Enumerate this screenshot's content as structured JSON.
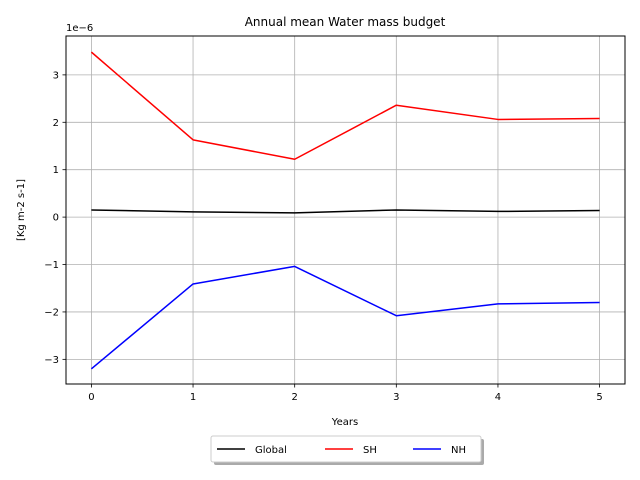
{
  "chart_data": {
    "type": "line",
    "title": "Annual mean Water mass budget",
    "xlabel": "Years",
    "ylabel": "[Kg m-2 s-1]",
    "offset_text": "1e−6",
    "y_scale_factor": 1e-06,
    "x": [
      0,
      1,
      2,
      3,
      4,
      5
    ],
    "xlim": [
      -0.25,
      5.25
    ],
    "ylim": [
      -3.52,
      3.82
    ],
    "x_ticks": [
      0,
      1,
      2,
      3,
      4,
      5
    ],
    "x_tick_labels": [
      "0",
      "1",
      "2",
      "3",
      "4",
      "5"
    ],
    "y_ticks": [
      -3,
      -2,
      -1,
      0,
      1,
      2,
      3
    ],
    "y_tick_labels": [
      "−3",
      "−2",
      "−1",
      "0",
      "1",
      "2",
      "3"
    ],
    "grid": true,
    "legend_placement": "bottom-center, below axes",
    "series": [
      {
        "name": "Global",
        "color": "#000000",
        "values": [
          0.15,
          0.11,
          0.09,
          0.15,
          0.12,
          0.14
        ]
      },
      {
        "name": "SH",
        "color": "#ff0000",
        "values": [
          3.48,
          1.63,
          1.22,
          2.36,
          2.06,
          2.08
        ]
      },
      {
        "name": "NH",
        "color": "#0000ff",
        "values": [
          -3.2,
          -1.41,
          -1.04,
          -2.08,
          -1.83,
          -1.8
        ]
      }
    ]
  }
}
